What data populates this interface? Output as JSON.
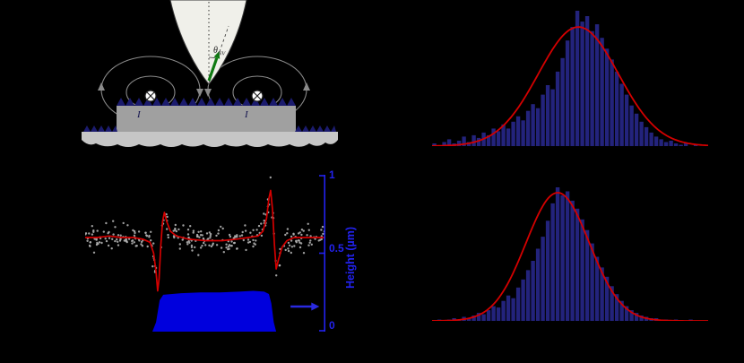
{
  "colors": {
    "background": "#000000",
    "axis_blue": "#2222ee",
    "height_fill": "#0000dd",
    "fit_red": "#d40000",
    "scatter_gray": "#b0b0b0",
    "histogram_bar": "#23237c",
    "navy_roughness": "#1b1b6e",
    "sample_gray": "#a0a0a0",
    "substrate_gray": "#c6c6c6",
    "field_line_gray": "#8a8a8a",
    "tip_fill": "#f0f0ea",
    "nv_green": "#0f7a12"
  },
  "icons": {
    "current_into_page_symbol": "circle-with-cross",
    "nv_spin_arrow": "green-arrow-along-nv-axis",
    "scan_direction_arrow": "arrow-right"
  },
  "diagram": {
    "theta": "θ",
    "theta_sub": "NV",
    "current_left": "I",
    "current_right": "I"
  },
  "panel_b_axis": {
    "label": "Height (µm)",
    "ticks": [
      "1",
      "0.5",
      "0"
    ]
  },
  "chart_data": [
    {
      "id": "line-scan",
      "type": "line",
      "title": "",
      "xlabel": "",
      "ylabel": "",
      "x_range": [
        0,
        1
      ],
      "right_axis": {
        "label": "Height (µm)",
        "min": 0,
        "max": 1,
        "ticks": [
          0,
          0.5,
          1
        ],
        "color": "#2222ee"
      },
      "series": [
        {
          "name": "measured-data",
          "style": "scatter",
          "color": "#b0b0b0",
          "n_points": 300,
          "noise_sigma": 0.042,
          "seed": 42
        },
        {
          "name": "fit",
          "style": "line",
          "color": "#d40000",
          "points": [
            [
              0,
              0.6
            ],
            [
              0.05,
              0.6
            ],
            [
              0.1,
              0.61
            ],
            [
              0.15,
              0.6
            ],
            [
              0.2,
              0.6
            ],
            [
              0.24,
              0.59
            ],
            [
              0.27,
              0.57
            ],
            [
              0.285,
              0.5
            ],
            [
              0.295,
              0.38
            ],
            [
              0.302,
              0.26
            ],
            [
              0.308,
              0.34
            ],
            [
              0.315,
              0.55
            ],
            [
              0.322,
              0.7
            ],
            [
              0.33,
              0.76
            ],
            [
              0.34,
              0.7
            ],
            [
              0.355,
              0.64
            ],
            [
              0.38,
              0.61
            ],
            [
              0.43,
              0.59
            ],
            [
              0.5,
              0.58
            ],
            [
              0.57,
              0.58
            ],
            [
              0.63,
              0.59
            ],
            [
              0.68,
              0.6
            ],
            [
              0.72,
              0.61
            ],
            [
              0.74,
              0.64
            ],
            [
              0.755,
              0.72
            ],
            [
              0.765,
              0.85
            ],
            [
              0.772,
              0.9
            ],
            [
              0.78,
              0.78
            ],
            [
              0.788,
              0.55
            ],
            [
              0.795,
              0.4
            ],
            [
              0.805,
              0.46
            ],
            [
              0.82,
              0.54
            ],
            [
              0.84,
              0.58
            ],
            [
              0.87,
              0.6
            ],
            [
              0.91,
              0.6
            ],
            [
              0.95,
              0.6
            ],
            [
              1,
              0.6
            ]
          ]
        },
        {
          "name": "height-profile",
          "style": "area",
          "axis": "right",
          "color": "#0000dd",
          "points": [
            [
              0,
              0
            ],
            [
              0.28,
              0
            ],
            [
              0.295,
              0.06
            ],
            [
              0.31,
              0.2
            ],
            [
              0.325,
              0.235
            ],
            [
              0.4,
              0.245
            ],
            [
              0.48,
              0.25
            ],
            [
              0.56,
              0.25
            ],
            [
              0.64,
              0.255
            ],
            [
              0.7,
              0.26
            ],
            [
              0.745,
              0.255
            ],
            [
              0.765,
              0.24
            ],
            [
              0.775,
              0.18
            ],
            [
              0.785,
              0.06
            ],
            [
              0.795,
              0
            ],
            [
              1,
              0
            ]
          ]
        }
      ],
      "annotations": [
        {
          "type": "arrow",
          "x1": 0.855,
          "x2": 0.975,
          "y": 0.16,
          "color": "#2a2ae0"
        }
      ]
    },
    {
      "id": "histogram-top",
      "type": "bar",
      "title": "",
      "xlabel": "",
      "ylabel": "",
      "bar_color": "#23237c",
      "values": [
        0.02,
        0,
        0.03,
        0.05,
        0.02,
        0.04,
        0.07,
        0.03,
        0.08,
        0.06,
        0.1,
        0.08,
        0.13,
        0.11,
        0.16,
        0.13,
        0.18,
        0.22,
        0.19,
        0.26,
        0.31,
        0.28,
        0.38,
        0.45,
        0.42,
        0.55,
        0.65,
        0.78,
        0.88,
        1.0,
        0.92,
        0.96,
        0.85,
        0.9,
        0.8,
        0.72,
        0.64,
        0.55,
        0.46,
        0.38,
        0.3,
        0.24,
        0.18,
        0.14,
        0.1,
        0.07,
        0.05,
        0.03,
        0.04,
        0.02,
        0.01,
        0.02,
        0,
        0.01,
        0,
        0
      ],
      "fit": {
        "shape": "gaussian",
        "center": 0.53,
        "sigma": 0.145,
        "amplitude": 0.88,
        "color": "#d40000"
      }
    },
    {
      "id": "histogram-bottom",
      "type": "bar",
      "title": "",
      "xlabel": "",
      "ylabel": "",
      "bar_color": "#23237c",
      "values": [
        0,
        0.01,
        0,
        0.01,
        0.02,
        0.01,
        0.03,
        0.02,
        0.04,
        0.06,
        0.05,
        0.08,
        0.11,
        0.1,
        0.15,
        0.19,
        0.17,
        0.25,
        0.31,
        0.38,
        0.45,
        0.54,
        0.63,
        0.75,
        0.88,
        1.0,
        0.94,
        0.97,
        0.9,
        0.84,
        0.76,
        0.68,
        0.58,
        0.48,
        0.4,
        0.33,
        0.26,
        0.2,
        0.15,
        0.11,
        0.08,
        0.06,
        0.04,
        0.03,
        0.02,
        0.02,
        0.01,
        0.01,
        0,
        0.01,
        0,
        0,
        0.01,
        0,
        0,
        0
      ],
      "fit": {
        "shape": "gaussian",
        "center": 0.455,
        "sigma": 0.115,
        "amplitude": 0.96,
        "color": "#d40000"
      }
    }
  ]
}
